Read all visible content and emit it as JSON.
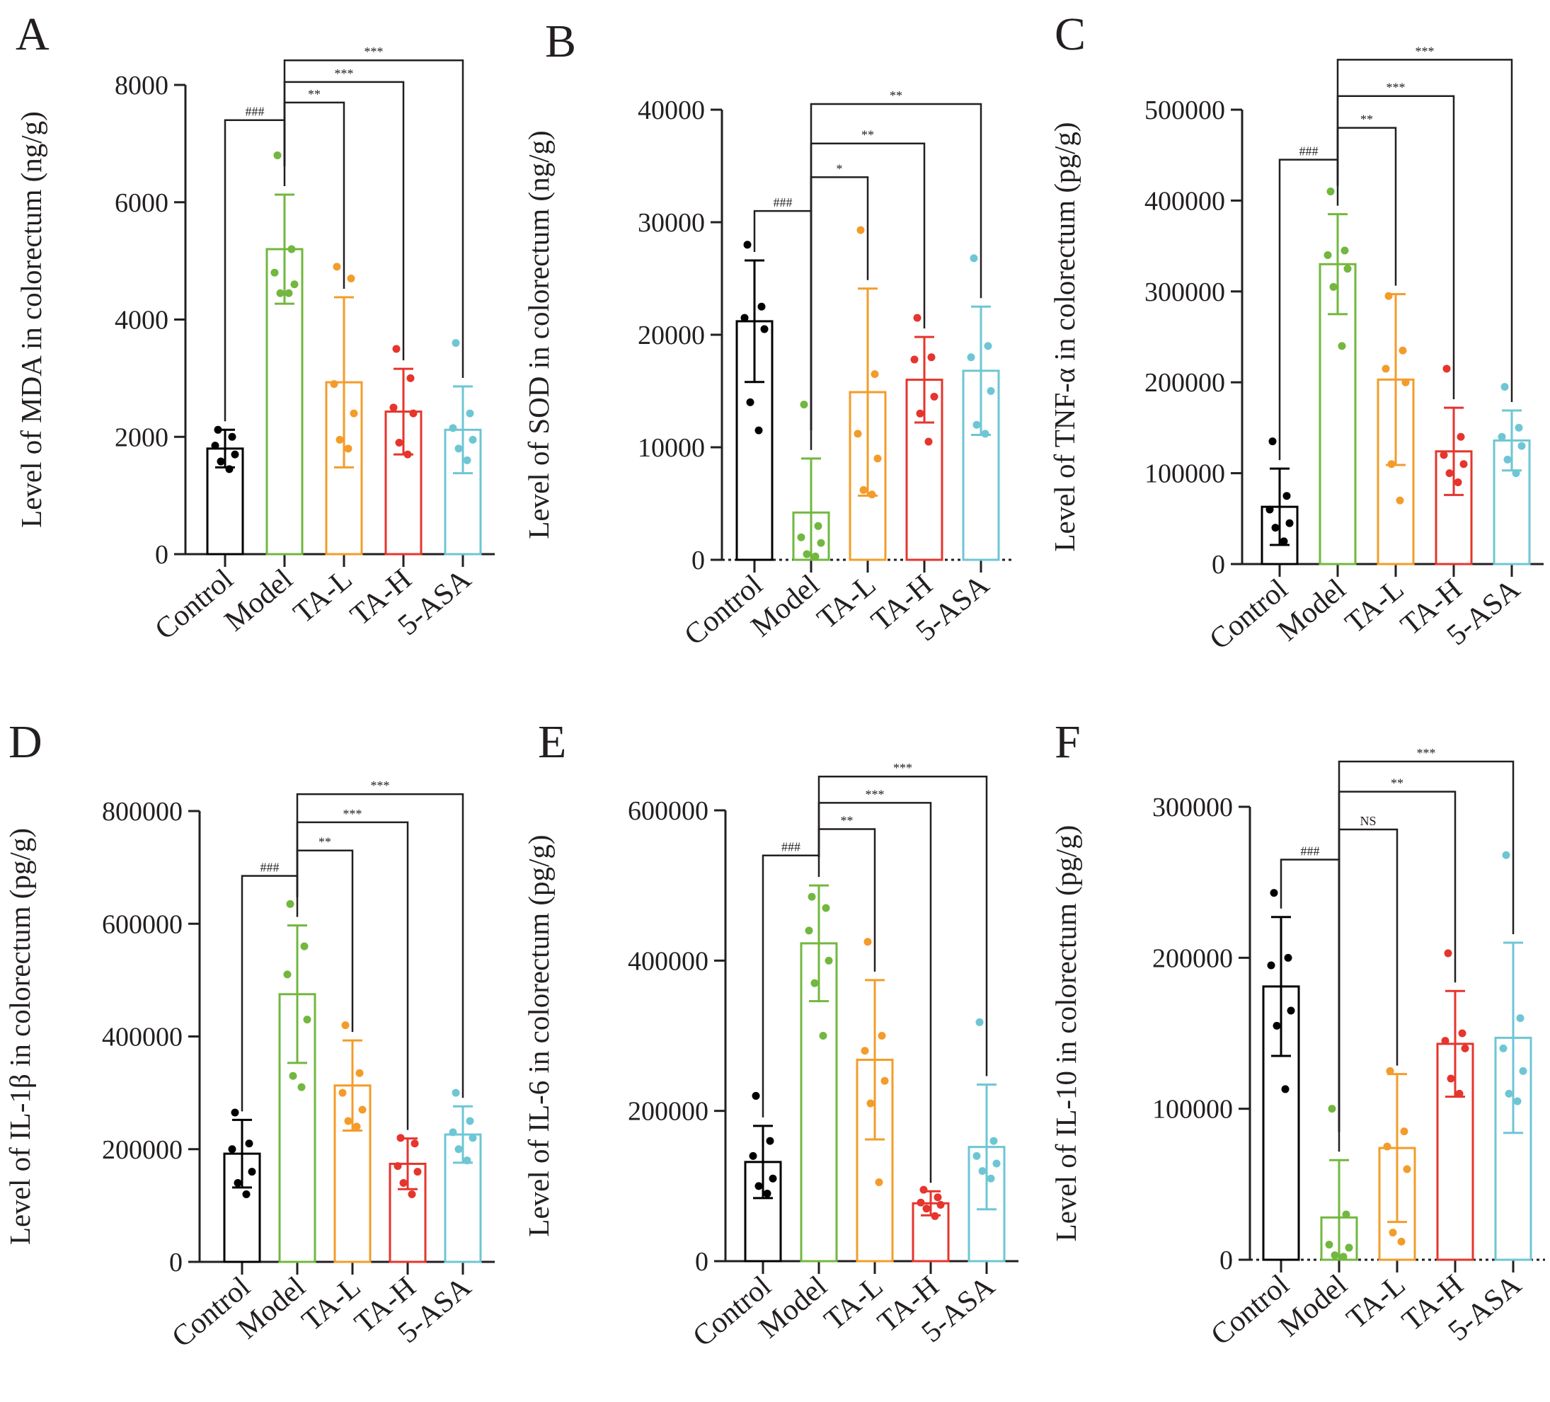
{
  "colors": {
    "Control": "#000000",
    "Model": "#72b73f",
    "TA-L": "#f39c2a",
    "TA-H": "#e5352d",
    "5-ASA": "#6ec6d4"
  },
  "chart_data": [
    {
      "id": "A",
      "type": "bar",
      "ylabel": "Level of MDA in colorectum (ng/g)",
      "categories": [
        "Control",
        "Model",
        "TA-L",
        "TA-H",
        "5-ASA"
      ],
      "ylim": [
        0,
        8000
      ],
      "yticks": [
        0,
        2000,
        4000,
        6000,
        8000
      ],
      "ytick_labels": [
        "0",
        "2000",
        "4000",
        "6000",
        "8000"
      ],
      "zero_dotted": false,
      "means": [
        1800,
        5200,
        2930,
        2430,
        2120
      ],
      "sd": [
        320,
        930,
        1450,
        730,
        740
      ],
      "points": [
        [
          2120,
          2000,
          1850,
          1700,
          1580,
          1450
        ],
        [
          6800,
          5200,
          4800,
          4600,
          4450,
          4450
        ],
        [
          4900,
          4700,
          2900,
          2400,
          1950,
          1800
        ],
        [
          3500,
          3000,
          2500,
          2400,
          1900,
          1700
        ],
        [
          3600,
          2400,
          2150,
          1950,
          1800,
          1600
        ]
      ],
      "comparisons": [
        {
          "from": 0,
          "to": 1,
          "label": "###",
          "y": 7400
        },
        {
          "from": 1,
          "to": 2,
          "label": "**",
          "y": 7700
        },
        {
          "from": 1,
          "to": 3,
          "label": "***",
          "y": 8050
        },
        {
          "from": 1,
          "to": 4,
          "label": "***",
          "y": 8420
        }
      ]
    },
    {
      "id": "B",
      "type": "bar",
      "ylabel": "Level of SOD in colorectum (ng/g)",
      "categories": [
        "Control",
        "Model",
        "TA-L",
        "TA-H",
        "5-ASA"
      ],
      "ylim": [
        0,
        40000
      ],
      "yticks": [
        0,
        10000,
        20000,
        30000,
        40000
      ],
      "ytick_labels": [
        "0",
        "10000",
        "20000",
        "30000",
        "40000"
      ],
      "zero_dotted": true,
      "means": [
        21200,
        4200,
        14900,
        16000,
        16800
      ],
      "sd": [
        5400,
        4800,
        9200,
        3800,
        5700
      ],
      "points": [
        [
          28000,
          22500,
          21500,
          20500,
          14000,
          11500
        ],
        [
          13800,
          3000,
          2000,
          1500,
          500,
          300
        ],
        [
          29300,
          16500,
          11200,
          9000,
          6200,
          5800
        ],
        [
          21500,
          18000,
          17800,
          14500,
          13000,
          10500
        ],
        [
          26800,
          19000,
          18000,
          15000,
          12000,
          11200
        ]
      ],
      "comparisons": [
        {
          "from": 0,
          "to": 1,
          "label": "###",
          "y": 31000
        },
        {
          "from": 1,
          "to": 2,
          "label": "*",
          "y": 34000
        },
        {
          "from": 1,
          "to": 3,
          "label": "**",
          "y": 37000
        },
        {
          "from": 1,
          "to": 4,
          "label": "**",
          "y": 40500
        }
      ]
    },
    {
      "id": "C",
      "type": "bar",
      "ylabel": "Level of TNF-α in colorectum (pg/g)",
      "categories": [
        "Control",
        "Model",
        "TA-L",
        "TA-H",
        "5-ASA"
      ],
      "ylim": [
        0,
        500000
      ],
      "yticks": [
        0,
        100000,
        200000,
        300000,
        400000,
        500000
      ],
      "ytick_labels": [
        "0",
        "100000",
        "200000",
        "300000",
        "400000",
        "500000"
      ],
      "zero_dotted": false,
      "means": [
        63000,
        330000,
        203000,
        124000,
        136000
      ],
      "sd": [
        42000,
        55000,
        94000,
        48000,
        33000
      ],
      "points": [
        [
          135000,
          75000,
          60000,
          45000,
          40000,
          25000
        ],
        [
          410000,
          345000,
          340000,
          325000,
          305000,
          240000
        ],
        [
          295000,
          235000,
          215000,
          200000,
          110000,
          70000
        ],
        [
          215000,
          140000,
          120000,
          110000,
          100000,
          90000
        ],
        [
          195000,
          150000,
          140000,
          130000,
          115000,
          100000
        ]
      ],
      "comparisons": [
        {
          "from": 0,
          "to": 1,
          "label": "###",
          "y": 445000
        },
        {
          "from": 1,
          "to": 2,
          "label": "**",
          "y": 480000
        },
        {
          "from": 1,
          "to": 3,
          "label": "***",
          "y": 515000
        },
        {
          "from": 1,
          "to": 4,
          "label": "***",
          "y": 555000
        }
      ]
    },
    {
      "id": "D",
      "type": "bar",
      "ylabel": "Level of IL-1β in colorectum (pg/g)",
      "categories": [
        "Control",
        "Model",
        "TA-L",
        "TA-H",
        "5-ASA"
      ],
      "ylim": [
        0,
        800000
      ],
      "yticks": [
        0,
        200000,
        400000,
        600000,
        800000
      ],
      "ytick_labels": [
        "0",
        "200000",
        "400000",
        "600000",
        "800000"
      ],
      "zero_dotted": false,
      "means": [
        192000,
        475000,
        313000,
        174000,
        226000
      ],
      "sd": [
        60000,
        122000,
        80000,
        45000,
        50000
      ],
      "points": [
        [
          265000,
          210000,
          200000,
          160000,
          140000,
          120000
        ],
        [
          635000,
          560000,
          510000,
          430000,
          330000,
          310000
        ],
        [
          420000,
          335000,
          300000,
          270000,
          250000,
          240000
        ],
        [
          220000,
          210000,
          170000,
          160000,
          140000,
          120000
        ],
        [
          300000,
          250000,
          230000,
          220000,
          200000,
          180000
        ]
      ],
      "comparisons": [
        {
          "from": 0,
          "to": 1,
          "label": "###",
          "y": 685000
        },
        {
          "from": 1,
          "to": 2,
          "label": "**",
          "y": 730000
        },
        {
          "from": 1,
          "to": 3,
          "label": "***",
          "y": 780000
        },
        {
          "from": 1,
          "to": 4,
          "label": "***",
          "y": 830000
        }
      ]
    },
    {
      "id": "E",
      "type": "bar",
      "ylabel": "Level of IL-6 in colorectum (pg/g)",
      "categories": [
        "Control",
        "Model",
        "TA-L",
        "TA-H",
        "5-ASA"
      ],
      "ylim": [
        0,
        600000
      ],
      "yticks": [
        0,
        200000,
        400000,
        600000
      ],
      "ytick_labels": [
        "0",
        "200000",
        "400000",
        "600000"
      ],
      "zero_dotted": false,
      "means": [
        132000,
        423000,
        268000,
        77000,
        152000
      ],
      "sd": [
        48000,
        77000,
        106000,
        16000,
        83000
      ],
      "points": [
        [
          220000,
          160000,
          140000,
          110000,
          100000,
          90000
        ],
        [
          485000,
          470000,
          440000,
          400000,
          370000,
          300000
        ],
        [
          425000,
          300000,
          280000,
          240000,
          210000,
          105000
        ],
        [
          95000,
          85000,
          78000,
          75000,
          70000,
          60000
        ],
        [
          318000,
          160000,
          140000,
          130000,
          120000,
          110000
        ]
      ],
      "comparisons": [
        {
          "from": 0,
          "to": 1,
          "label": "###",
          "y": 540000
        },
        {
          "from": 1,
          "to": 2,
          "label": "**",
          "y": 575000
        },
        {
          "from": 1,
          "to": 3,
          "label": "***",
          "y": 610000
        },
        {
          "from": 1,
          "to": 4,
          "label": "***",
          "y": 645000
        }
      ]
    },
    {
      "id": "F",
      "type": "bar",
      "ylabel": "Level of IL-10 in colorectum (pg/g)",
      "categories": [
        "Control",
        "Model",
        "TA-L",
        "TA-H",
        "5-ASA"
      ],
      "ylim": [
        0,
        300000
      ],
      "yticks": [
        0,
        100000,
        200000,
        300000
      ],
      "ytick_labels": [
        "0",
        "100000",
        "200000",
        "300000"
      ],
      "zero_dotted": true,
      "means": [
        181000,
        28000,
        74000,
        143000,
        147000
      ],
      "sd": [
        46000,
        38000,
        49000,
        35000,
        63000
      ],
      "points": [
        [
          243000,
          200000,
          195000,
          165000,
          155000,
          113000
        ],
        [
          100000,
          30000,
          10000,
          8000,
          3000,
          2000
        ],
        [
          125000,
          85000,
          75000,
          60000,
          18000,
          12000
        ],
        [
          203000,
          150000,
          145000,
          140000,
          120000,
          110000
        ],
        [
          268000,
          160000,
          140000,
          125000,
          110000,
          105000
        ]
      ],
      "comparisons": [
        {
          "from": 0,
          "to": 1,
          "label": "###",
          "y": 265000
        },
        {
          "from": 1,
          "to": 2,
          "label": "NS",
          "y": 285000
        },
        {
          "from": 1,
          "to": 3,
          "label": "**",
          "y": 310000
        },
        {
          "from": 1,
          "to": 4,
          "label": "***",
          "y": 330000
        }
      ]
    }
  ]
}
